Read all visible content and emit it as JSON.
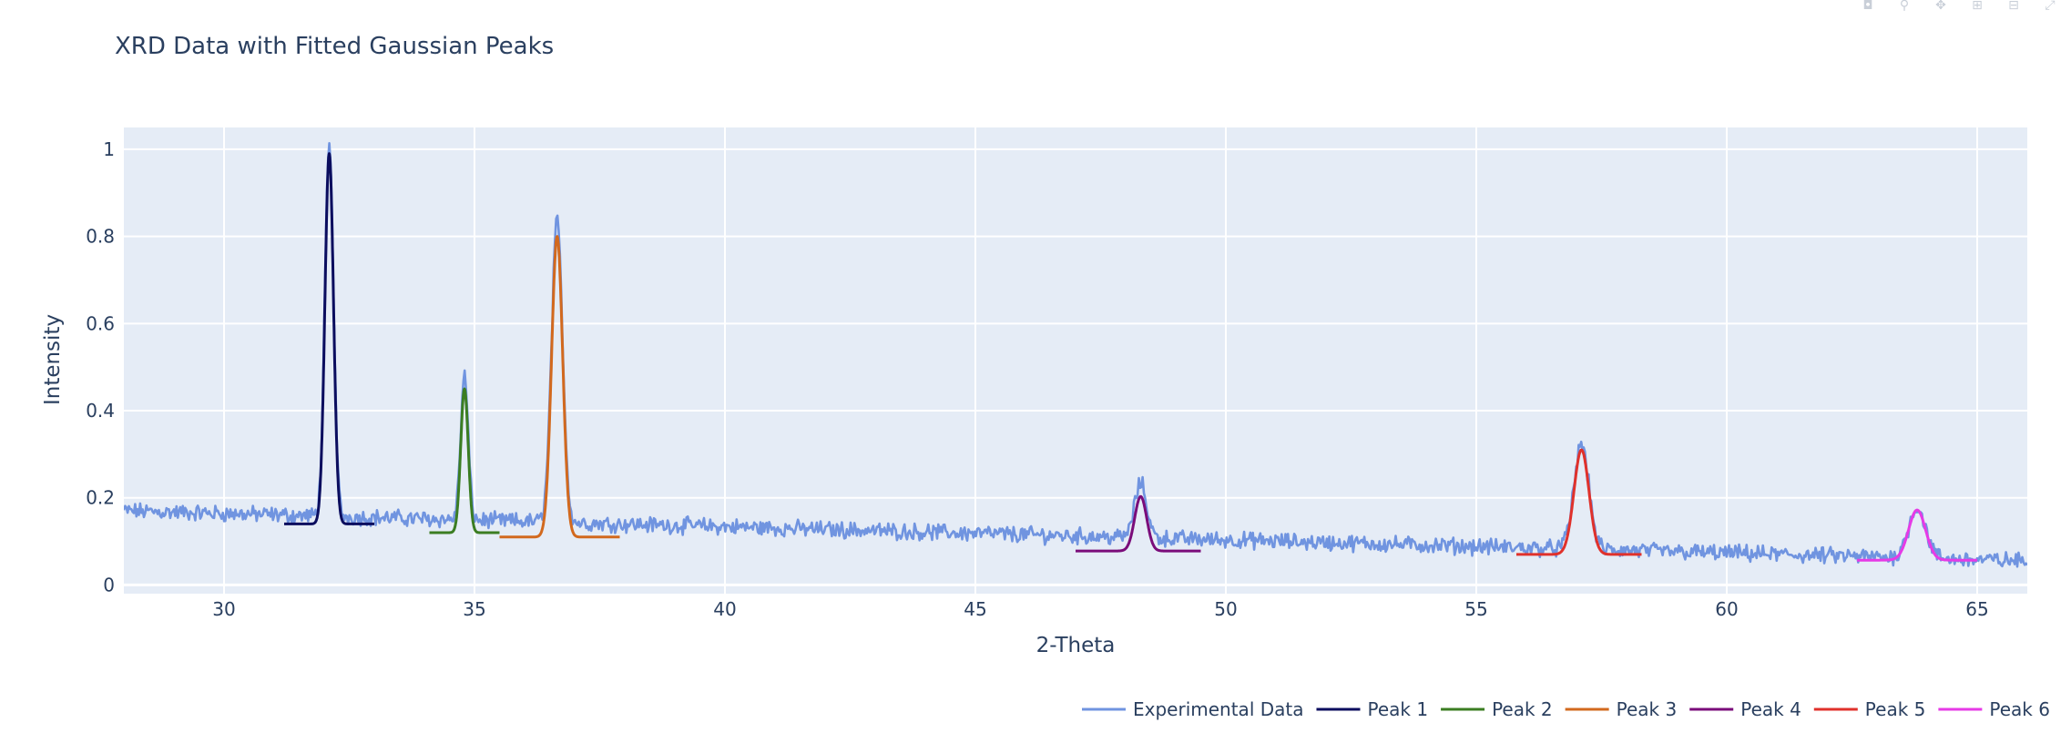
{
  "toolbar": {
    "buttons": [
      {
        "name": "download-plot-icon",
        "glyph": "◘"
      },
      {
        "name": "zoom-icon",
        "glyph": "⚲"
      },
      {
        "name": "pan-icon",
        "glyph": "✥"
      },
      {
        "name": "zoom-in-icon",
        "glyph": "⊞"
      },
      {
        "name": "zoom-out-icon",
        "glyph": "⊟"
      },
      {
        "name": "autoscale-icon",
        "glyph": "⤢"
      }
    ]
  },
  "chart_data": {
    "type": "line",
    "title": "XRD Data with Fitted Gaussian Peaks",
    "xlabel": "2-Theta",
    "ylabel": "Intensity",
    "xlim": [
      28,
      66
    ],
    "ylim": [
      -0.02,
      1.05
    ],
    "xticks": [
      30,
      35,
      40,
      45,
      50,
      55,
      60,
      65
    ],
    "yticks": [
      0,
      0.2,
      0.4,
      0.6,
      0.8,
      1
    ],
    "ytick_labels": [
      "0",
      "0.2",
      "0.4",
      "0.6",
      "0.8",
      "1"
    ],
    "grid": true,
    "legend_position": "bottom-right",
    "background_color": "#e5ecf6",
    "experimental": {
      "name": "Experimental Data",
      "color": "#7094e0",
      "x_start": 28,
      "x_end": 66,
      "points": 1520,
      "baseline_start": 0.17,
      "baseline_end": 0.055,
      "noise_amplitude": 0.015
    },
    "series": [
      {
        "name": "Peak 1",
        "color": "#0b0d5e",
        "center": 32.1,
        "amplitude": 0.85,
        "sigma": 0.085,
        "offset": 0.14,
        "x_range": [
          31.2,
          33.0
        ]
      },
      {
        "name": "Peak 2",
        "color": "#3b7d22",
        "center": 34.8,
        "amplitude": 0.33,
        "sigma": 0.075,
        "offset": 0.12,
        "x_range": [
          34.1,
          35.5
        ]
      },
      {
        "name": "Peak 3",
        "color": "#d2691e",
        "center": 36.65,
        "amplitude": 0.69,
        "sigma": 0.11,
        "offset": 0.11,
        "x_range": [
          35.5,
          37.9
        ]
      },
      {
        "name": "Peak 4",
        "color": "#7a0c7a",
        "center": 48.3,
        "amplitude": 0.125,
        "sigma": 0.12,
        "offset": 0.078,
        "x_range": [
          47.0,
          49.5
        ]
      },
      {
        "name": "Peak 5",
        "color": "#e0312b",
        "center": 57.1,
        "amplitude": 0.24,
        "sigma": 0.15,
        "offset": 0.07,
        "x_range": [
          55.8,
          58.3
        ]
      },
      {
        "name": "Peak 6",
        "color": "#e63ae6",
        "center": 63.8,
        "amplitude": 0.115,
        "sigma": 0.17,
        "offset": 0.057,
        "x_range": [
          62.6,
          65.0
        ]
      }
    ]
  }
}
